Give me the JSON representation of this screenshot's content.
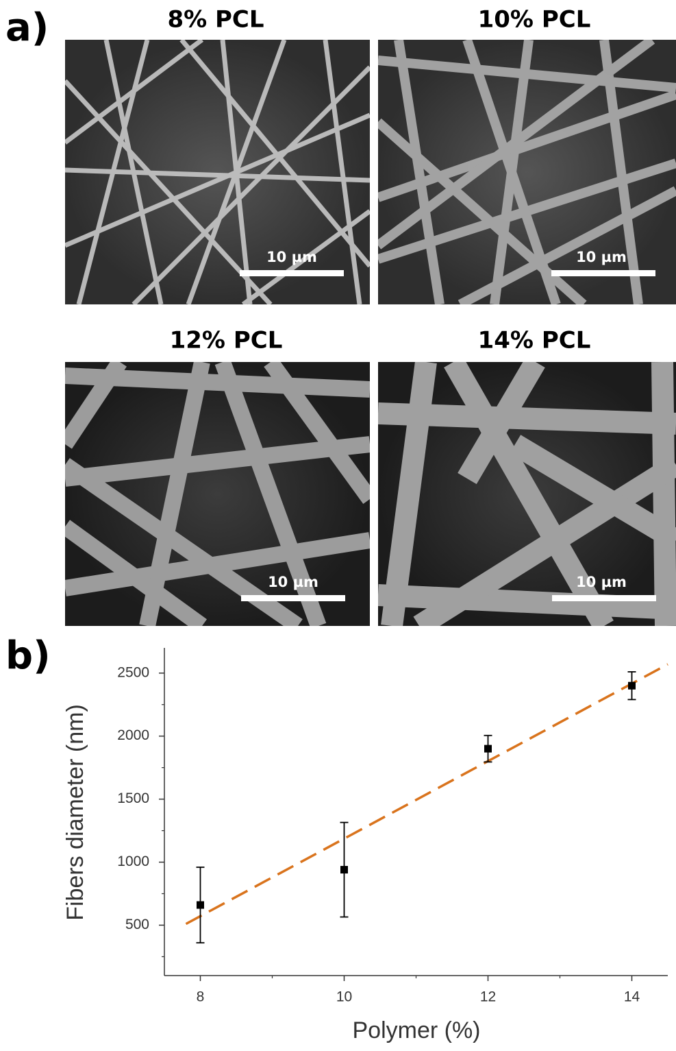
{
  "panel_a": {
    "label": "a)",
    "images": [
      {
        "title": "8% PCL",
        "scale": "10 µm"
      },
      {
        "title": "10% PCL",
        "scale": "10 µm"
      },
      {
        "title": "12% PCL",
        "scale": "10 µm"
      },
      {
        "title": "14% PCL",
        "scale": "10 µm"
      }
    ]
  },
  "panel_b": {
    "label": "b)"
  },
  "chart_data": {
    "type": "scatter",
    "x_label": "Polymer (%)",
    "y_label": "Fibers diameter (nm)",
    "series": [
      {
        "x": [
          8,
          10,
          12,
          14
        ],
        "values": [
          660,
          940,
          1900,
          2400
        ],
        "errors": [
          300,
          375,
          105,
          110
        ],
        "color": "#000000"
      }
    ],
    "fit_line": {
      "x": [
        7.8,
        14.5
      ],
      "values": [
        510,
        2570
      ],
      "color": "#d9731c",
      "dashed": true
    },
    "xlim": [
      7.5,
      14.5
    ],
    "xticks": [
      8,
      10,
      12,
      14
    ],
    "xticks_minor": [
      9,
      11,
      13
    ],
    "ylim": [
      100,
      2700
    ],
    "yticks": [
      500,
      1000,
      1500,
      2000,
      2500
    ],
    "yticks_minor": [
      250,
      750,
      1250,
      1750,
      2250
    ]
  }
}
